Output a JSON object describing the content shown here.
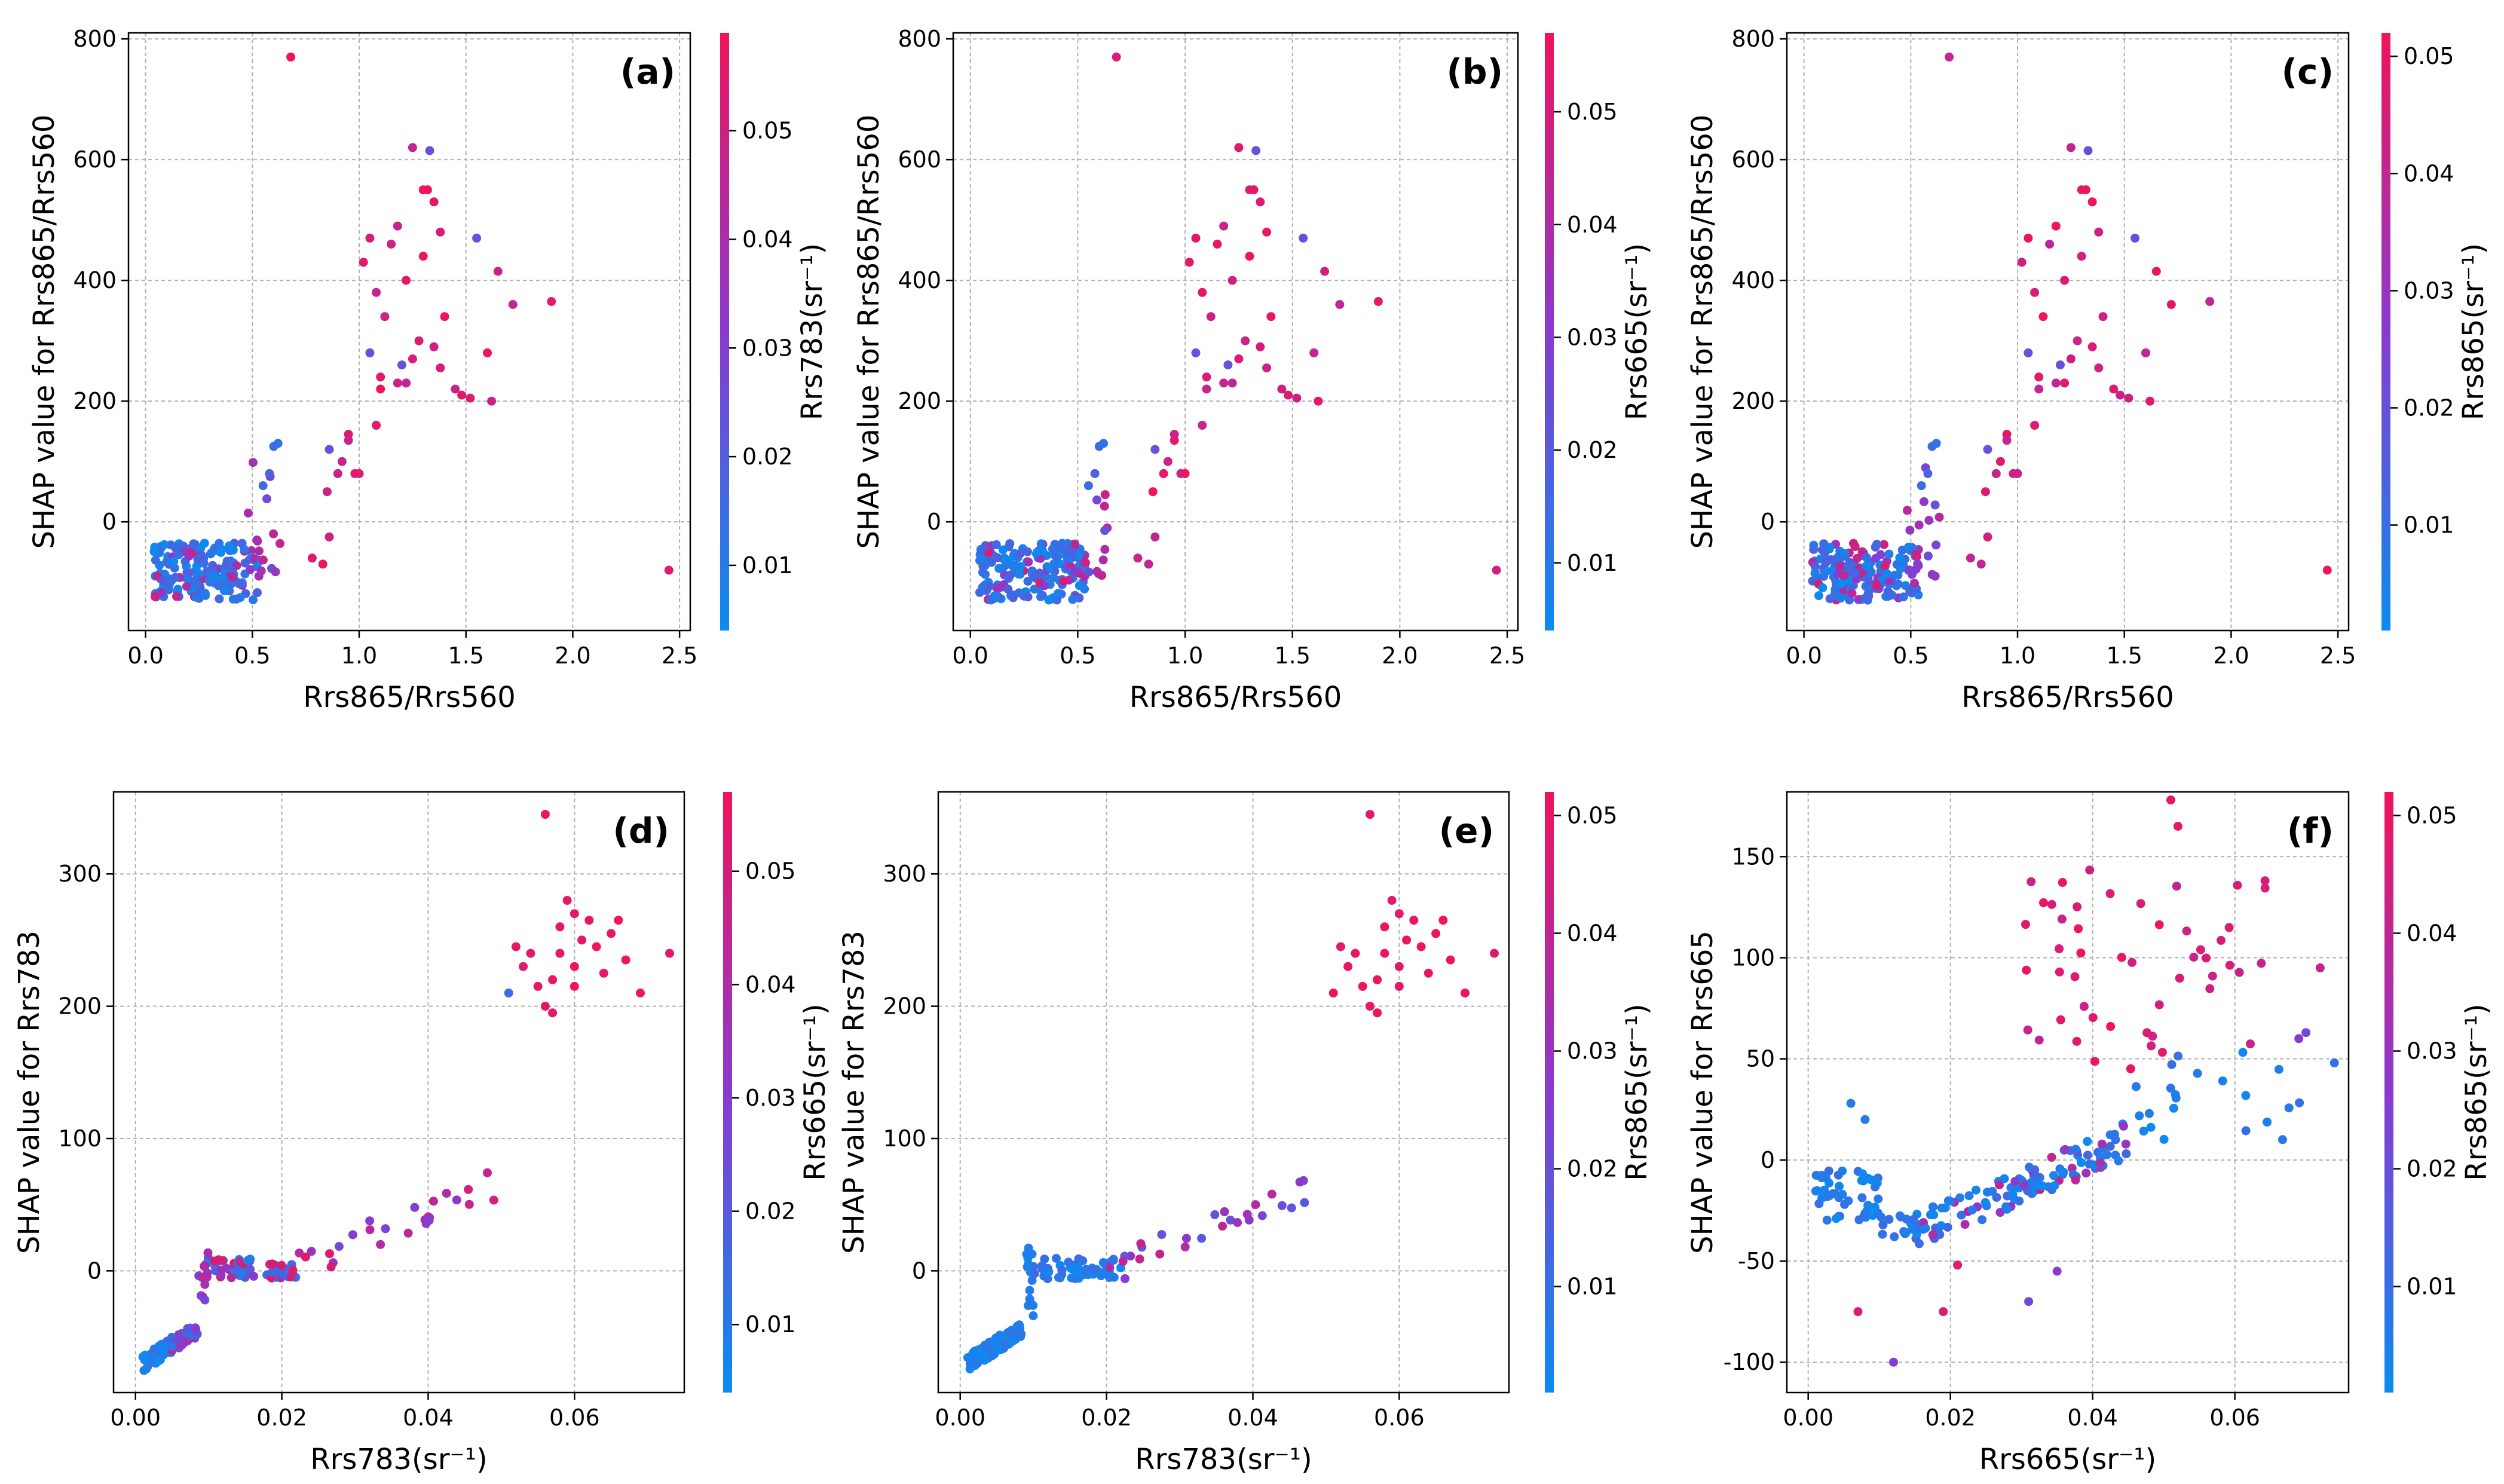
{
  "colors": {
    "low": "#0a8cf0",
    "mid": "#8a3ad0",
    "high": "#f0145a",
    "grid": "#b0b0b0"
  },
  "chart_data": [
    {
      "type": "scatter",
      "panel_label": "(a)",
      "xlabel": "Rrs865/Rrs560",
      "ylabel": "SHAP value for Rrs865/Rrs560",
      "xlim": [
        -0.08,
        2.55
      ],
      "ylim": [
        -180,
        810
      ],
      "xticks": [
        0.0,
        0.5,
        1.0,
        1.5,
        2.0,
        2.5
      ],
      "xtick_labels": [
        "0.0",
        "0.5",
        "1.0",
        "1.5",
        "2.0",
        "2.5"
      ],
      "yticks": [
        0,
        200,
        400,
        600,
        800
      ],
      "ytick_labels": [
        "0",
        "200",
        "400",
        "600",
        "800"
      ],
      "colorbar": {
        "label": "Rrs783(sr⁻¹)",
        "range": [
          0.004,
          0.059
        ],
        "ticks": [
          0.01,
          0.02,
          0.03,
          0.04,
          0.05
        ],
        "tick_labels": [
          "0.01",
          "0.02",
          "0.03",
          "0.04",
          "0.05"
        ]
      },
      "seed": 11,
      "generator": "ratio"
    },
    {
      "type": "scatter",
      "panel_label": "(b)",
      "xlabel": "Rrs865/Rrs560",
      "ylabel": "SHAP value for Rrs865/Rrs560",
      "xlim": [
        -0.08,
        2.55
      ],
      "ylim": [
        -180,
        810
      ],
      "xticks": [
        0.0,
        0.5,
        1.0,
        1.5,
        2.0,
        2.5
      ],
      "xtick_labels": [
        "0.0",
        "0.5",
        "1.0",
        "1.5",
        "2.0",
        "2.5"
      ],
      "yticks": [
        0,
        200,
        400,
        600,
        800
      ],
      "ytick_labels": [
        "0",
        "200",
        "400",
        "600",
        "800"
      ],
      "colorbar": {
        "label": "Rrs665(sr⁻¹)",
        "range": [
          0.004,
          0.057
        ],
        "ticks": [
          0.01,
          0.02,
          0.03,
          0.04,
          0.05
        ],
        "tick_labels": [
          "0.01",
          "0.02",
          "0.03",
          "0.04",
          "0.05"
        ]
      },
      "seed": 23,
      "generator": "ratio"
    },
    {
      "type": "scatter",
      "panel_label": "(c)",
      "xlabel": "Rrs865/Rrs560",
      "ylabel": "SHAP value for Rrs865/Rrs560",
      "xlim": [
        -0.08,
        2.55
      ],
      "ylim": [
        -180,
        810
      ],
      "xticks": [
        0.0,
        0.5,
        1.0,
        1.5,
        2.0,
        2.5
      ],
      "xtick_labels": [
        "0.0",
        "0.5",
        "1.0",
        "1.5",
        "2.0",
        "2.5"
      ],
      "yticks": [
        0,
        200,
        400,
        600,
        800
      ],
      "ytick_labels": [
        "0",
        "200",
        "400",
        "600",
        "800"
      ],
      "colorbar": {
        "label": "Rrs865(sr⁻¹)",
        "range": [
          0.001,
          0.052
        ],
        "ticks": [
          0.01,
          0.02,
          0.03,
          0.04,
          0.05
        ],
        "tick_labels": [
          "0.01",
          "0.02",
          "0.03",
          "0.04",
          "0.05"
        ]
      },
      "seed": 37,
      "generator": "ratio"
    },
    {
      "type": "scatter",
      "panel_label": "(d)",
      "xlabel": "Rrs783(sr⁻¹)",
      "ylabel": "SHAP value for Rrs783",
      "xlim": [
        -0.003,
        0.075
      ],
      "ylim": [
        -92,
        362
      ],
      "xticks": [
        0.0,
        0.02,
        0.04,
        0.06
      ],
      "xtick_labels": [
        "0.00",
        "0.02",
        "0.04",
        "0.06"
      ],
      "yticks": [
        0,
        100,
        200,
        300
      ],
      "ytick_labels": [
        "0",
        "100",
        "200",
        "300"
      ],
      "colorbar": {
        "label": "Rrs665(sr⁻¹)",
        "range": [
          0.004,
          0.057
        ],
        "ticks": [
          0.01,
          0.02,
          0.03,
          0.04,
          0.05
        ],
        "tick_labels": [
          "0.01",
          "0.02",
          "0.03",
          "0.04",
          "0.05"
        ]
      },
      "seed": 41,
      "generator": "rrs783"
    },
    {
      "type": "scatter",
      "panel_label": "(e)",
      "xlabel": "Rrs783(sr⁻¹)",
      "ylabel": "SHAP value for Rrs783",
      "xlim": [
        -0.003,
        0.075
      ],
      "ylim": [
        -92,
        362
      ],
      "xticks": [
        0.0,
        0.02,
        0.04,
        0.06
      ],
      "xtick_labels": [
        "0.00",
        "0.02",
        "0.04",
        "0.06"
      ],
      "yticks": [
        0,
        100,
        200,
        300
      ],
      "ytick_labels": [
        "0",
        "100",
        "200",
        "300"
      ],
      "colorbar": {
        "label": "Rrs865(sr⁻¹)",
        "range": [
          0.001,
          0.052
        ],
        "ticks": [
          0.01,
          0.02,
          0.03,
          0.04,
          0.05
        ],
        "tick_labels": [
          "0.01",
          "0.02",
          "0.03",
          "0.04",
          "0.05"
        ]
      },
      "seed": 53,
      "generator": "rrs783_e"
    },
    {
      "type": "scatter",
      "panel_label": "(f)",
      "xlabel": "Rrs665(sr⁻¹)",
      "ylabel": "SHAP value for Rrs665",
      "xlim": [
        -0.003,
        0.076
      ],
      "ylim": [
        -115,
        182
      ],
      "xticks": [
        0.0,
        0.02,
        0.04,
        0.06
      ],
      "xtick_labels": [
        "0.00",
        "0.02",
        "0.04",
        "0.06"
      ],
      "yticks": [
        -100,
        -50,
        0,
        50,
        100,
        150
      ],
      "ytick_labels": [
        "-100",
        "-50",
        "0",
        "50",
        "100",
        "150"
      ],
      "colorbar": {
        "label": "Rrs865(sr⁻¹)",
        "range": [
          0.001,
          0.052
        ],
        "ticks": [
          0.01,
          0.02,
          0.03,
          0.04,
          0.05
        ],
        "tick_labels": [
          "0.01",
          "0.02",
          "0.03",
          "0.04",
          "0.05"
        ]
      },
      "seed": 67,
      "generator": "rrs665"
    }
  ]
}
